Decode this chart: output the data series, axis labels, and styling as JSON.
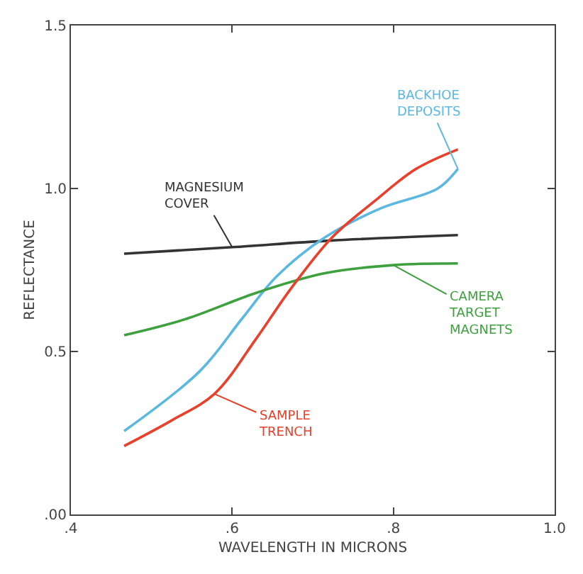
{
  "chart_data": {
    "type": "line",
    "xlabel": "WAVELENGTH IN MICRONS",
    "ylabel": "REFLECTANCE",
    "xlim": [
      0.4,
      1.0
    ],
    "xticks": [
      {
        "value": 0.4,
        "label": ".4"
      },
      {
        "value": 0.6,
        "label": ".6"
      },
      {
        "value": 0.8,
        "label": ".8"
      },
      {
        "value": 1.0,
        "label": "1.0"
      }
    ],
    "ylim": [
      0.0,
      1.5
    ],
    "yticks": [
      {
        "value": 0.0,
        "label": ".00"
      },
      {
        "value": 0.5,
        "label": "0.5"
      },
      {
        "value": 1.0,
        "label": "1.0"
      },
      {
        "value": 1.5,
        "label": "1.5"
      }
    ],
    "marker": "none",
    "line_style": "solid",
    "series": [
      {
        "name": "MAGNESIUM\nCOVER",
        "color": "#333333",
        "x": [
          0.466,
          0.6,
          0.72,
          0.88
        ],
        "values": [
          0.8,
          0.82,
          0.84,
          0.857
        ]
      },
      {
        "name": "BACKHOE\nDEPOSITS",
        "color": "#5bb8e0",
        "x": [
          0.466,
          0.56,
          0.612,
          0.655,
          0.715,
          0.785,
          0.855,
          0.88
        ],
        "values": [
          0.256,
          0.44,
          0.6,
          0.73,
          0.85,
          0.94,
          1.0,
          1.06
        ]
      },
      {
        "name": "CAMERA\nTARGET\nMAGNETS",
        "color": "#3fa03f",
        "x": [
          0.466,
          0.543,
          0.63,
          0.715,
          0.8,
          0.88
        ],
        "values": [
          0.55,
          0.6,
          0.68,
          0.74,
          0.765,
          0.77
        ]
      },
      {
        "name": "SAMPLE\nTRENCH",
        "color": "#e8402a",
        "x": [
          0.466,
          0.526,
          0.578,
          0.63,
          0.672,
          0.724,
          0.776,
          0.828,
          0.88
        ],
        "values": [
          0.21,
          0.29,
          0.37,
          0.54,
          0.69,
          0.85,
          0.96,
          1.06,
          1.12
        ]
      }
    ]
  }
}
